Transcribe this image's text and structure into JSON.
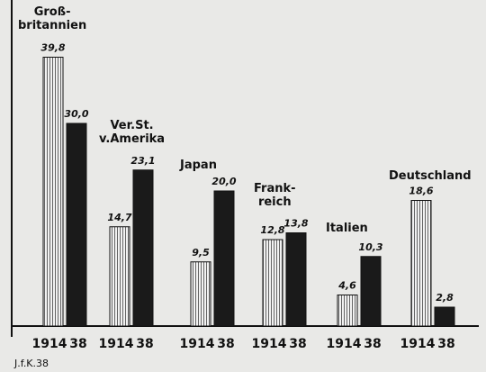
{
  "chart_data": {
    "type": "bar",
    "categories": [
      "Groß-\nbritannien",
      "Ver.St.\nv.Amerika",
      "Japan",
      "Frank-\nreich",
      "Italien",
      "Deutschland"
    ],
    "series": [
      {
        "name": "1914",
        "color": "#d8d8d8",
        "values": [
          39.8,
          14.7,
          9.5,
          12.8,
          4.6,
          18.6
        ],
        "value_labels": [
          "39,8",
          "14,7",
          "9,5",
          "12,8",
          "4,6",
          "18,6"
        ]
      },
      {
        "name": "38",
        "color": "#1a1a1a",
        "values": [
          30.0,
          23.1,
          20.0,
          13.8,
          10.3,
          2.8
        ],
        "value_labels": [
          "30,0",
          "23,1",
          "20,0",
          "13,8",
          "10,3",
          "2,8"
        ]
      }
    ],
    "annotation": "J.f.K.38"
  }
}
